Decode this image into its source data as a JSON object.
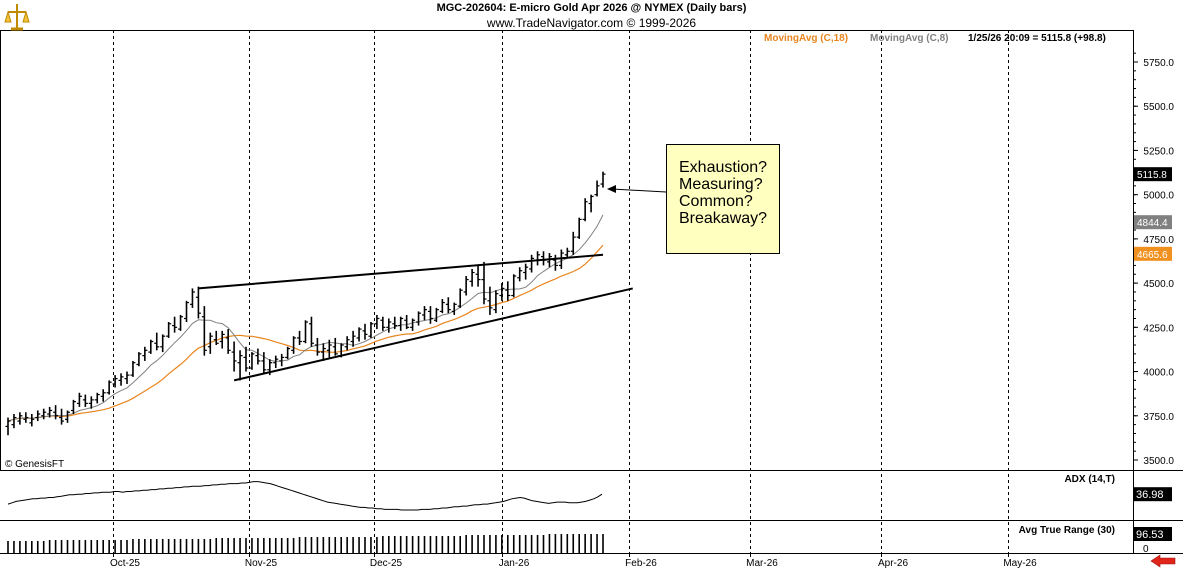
{
  "header": {
    "title": "MGC-202604:  E-micro Gold Apr 2026 @ NYMEX  (Daily bars)",
    "subtitle": "www.TradeNavigator.com © 1999-2026"
  },
  "legend": {
    "ma18": "MovingAvg (C,18)",
    "ma8": "MovingAvg (C,8)",
    "quote": "1/25/26 20:09 = 5115.8 (+98.8)"
  },
  "copyright": "© GenesisFT",
  "annotation": {
    "lines": [
      "Exhaustion?",
      "Measuring?",
      "Common?",
      "Breakaway?"
    ]
  },
  "colors": {
    "ma18": "#e8851e",
    "ma8": "#808080",
    "bars": "#000000",
    "annotation_bg": "#ffffc0",
    "last_price_bg": "#000000",
    "ma8_label_bg": "#808080",
    "ma18_label_bg": "#f0901e",
    "nav_arrow": "#e0261a"
  },
  "chart_data": {
    "type": "ohlc",
    "title": "MGC-202604:  E-micro Gold Apr 2026 @ NYMEX  (Daily bars)",
    "price_axis": {
      "range": [
        3450,
        5850
      ],
      "ticks": [
        "5750.0",
        "5500.0",
        "5250.0",
        "5000.0",
        "4750.0",
        "4500.0",
        "4250.0",
        "4000.0",
        "3750.0",
        "3500.0"
      ],
      "tick_values": [
        5750,
        5500,
        5250,
        5000,
        4750,
        4500,
        4250,
        4000,
        3750,
        3500
      ]
    },
    "price_labels": [
      {
        "name": "last",
        "text": "5115.8",
        "value": 5115.8
      },
      {
        "name": "ma8",
        "text": "4844.4",
        "value": 4844.4
      },
      {
        "name": "ma18",
        "text": "4665.6",
        "value": 4665.6
      }
    ],
    "x_axis": {
      "months": [
        "Oct-25",
        "Nov-25",
        "Dec-25",
        "Jan-26",
        "Feb-26",
        "Mar-26",
        "Apr-26",
        "May-26"
      ]
    },
    "bars": [
      [
        3690,
        3740,
        3640,
        3720
      ],
      [
        3700,
        3760,
        3680,
        3740
      ],
      [
        3720,
        3770,
        3700,
        3750
      ],
      [
        3730,
        3770,
        3710,
        3740
      ],
      [
        3710,
        3760,
        3690,
        3730
      ],
      [
        3740,
        3780,
        3720,
        3760
      ],
      [
        3750,
        3790,
        3730,
        3770
      ],
      [
        3760,
        3800,
        3740,
        3780
      ],
      [
        3770,
        3810,
        3730,
        3750
      ],
      [
        3740,
        3790,
        3700,
        3720
      ],
      [
        3730,
        3780,
        3710,
        3770
      ],
      [
        3780,
        3840,
        3760,
        3830
      ],
      [
        3820,
        3880,
        3800,
        3860
      ],
      [
        3840,
        3870,
        3800,
        3820
      ],
      [
        3820,
        3860,
        3790,
        3840
      ],
      [
        3840,
        3880,
        3820,
        3870
      ],
      [
        3860,
        3900,
        3830,
        3880
      ],
      [
        3880,
        3950,
        3870,
        3940
      ],
      [
        3930,
        3980,
        3910,
        3960
      ],
      [
        3950,
        3990,
        3920,
        3970
      ],
      [
        3960,
        4000,
        3930,
        3980
      ],
      [
        3980,
        4060,
        3970,
        4050
      ],
      [
        4040,
        4110,
        4030,
        4100
      ],
      [
        4090,
        4140,
        4060,
        4120
      ],
      [
        4110,
        4180,
        4100,
        4170
      ],
      [
        4160,
        4220,
        4120,
        4140
      ],
      [
        4140,
        4210,
        4110,
        4200
      ],
      [
        4200,
        4280,
        4190,
        4270
      ],
      [
        4260,
        4310,
        4220,
        4250
      ],
      [
        4240,
        4320,
        4230,
        4310
      ],
      [
        4300,
        4400,
        4280,
        4390
      ],
      [
        4380,
        4470,
        4360,
        4450
      ],
      [
        4420,
        4480,
        4300,
        4330
      ],
      [
        4310,
        4370,
        4090,
        4120
      ],
      [
        4140,
        4220,
        4100,
        4200
      ],
      [
        4180,
        4230,
        4150,
        4160
      ],
      [
        4170,
        4230,
        4130,
        4210
      ],
      [
        4190,
        4240,
        4100,
        4120
      ],
      [
        4110,
        4170,
        4000,
        4060
      ],
      [
        4050,
        4120,
        3950,
        4090
      ],
      [
        4080,
        4140,
        4000,
        4020
      ],
      [
        4020,
        4110,
        4010,
        4100
      ],
      [
        4090,
        4130,
        4040,
        4060
      ],
      [
        4060,
        4110,
        3990,
        4010
      ],
      [
        4010,
        4070,
        3980,
        4050
      ],
      [
        4050,
        4090,
        4020,
        4070
      ],
      [
        4060,
        4100,
        4030,
        4080
      ],
      [
        4080,
        4140,
        4070,
        4130
      ],
      [
        4120,
        4200,
        4100,
        4190
      ],
      [
        4190,
        4230,
        4150,
        4170
      ],
      [
        4170,
        4290,
        4160,
        4280
      ],
      [
        4270,
        4310,
        4140,
        4160
      ],
      [
        4150,
        4190,
        4090,
        4110
      ],
      [
        4110,
        4160,
        4060,
        4130
      ],
      [
        4120,
        4180,
        4080,
        4150
      ],
      [
        4140,
        4190,
        4090,
        4100
      ],
      [
        4090,
        4160,
        4080,
        4150
      ],
      [
        4140,
        4200,
        4120,
        4180
      ],
      [
        4170,
        4230,
        4140,
        4200
      ],
      [
        4190,
        4250,
        4170,
        4240
      ],
      [
        4230,
        4270,
        4180,
        4210
      ],
      [
        4200,
        4280,
        4190,
        4270
      ],
      [
        4270,
        4320,
        4240,
        4300
      ],
      [
        4290,
        4310,
        4230,
        4250
      ],
      [
        4250,
        4300,
        4220,
        4280
      ],
      [
        4270,
        4310,
        4240,
        4260
      ],
      [
        4260,
        4310,
        4230,
        4300
      ],
      [
        4290,
        4320,
        4240,
        4250
      ],
      [
        4250,
        4300,
        4230,
        4290
      ],
      [
        4280,
        4340,
        4260,
        4330
      ],
      [
        4320,
        4370,
        4290,
        4350
      ],
      [
        4340,
        4370,
        4270,
        4300
      ],
      [
        4290,
        4360,
        4280,
        4350
      ],
      [
        4340,
        4410,
        4330,
        4390
      ],
      [
        4380,
        4420,
        4330,
        4350
      ],
      [
        4340,
        4390,
        4320,
        4380
      ],
      [
        4370,
        4470,
        4360,
        4460
      ],
      [
        4450,
        4540,
        4430,
        4520
      ],
      [
        4510,
        4580,
        4480,
        4560
      ],
      [
        4550,
        4600,
        4480,
        4520
      ],
      [
        4520,
        4620,
        4380,
        4410
      ],
      [
        4400,
        4480,
        4320,
        4360
      ],
      [
        4350,
        4460,
        4330,
        4440
      ],
      [
        4430,
        4500,
        4400,
        4470
      ],
      [
        4460,
        4510,
        4400,
        4430
      ],
      [
        4430,
        4550,
        4420,
        4540
      ],
      [
        4530,
        4590,
        4510,
        4570
      ],
      [
        4560,
        4610,
        4520,
        4590
      ],
      [
        4580,
        4660,
        4560,
        4640
      ],
      [
        4630,
        4680,
        4600,
        4660
      ],
      [
        4650,
        4680,
        4600,
        4630
      ],
      [
        4620,
        4670,
        4590,
        4650
      ],
      [
        4630,
        4660,
        4570,
        4600
      ],
      [
        4600,
        4690,
        4580,
        4670
      ],
      [
        4660,
        4700,
        4640,
        4680
      ],
      [
        4680,
        4790,
        4660,
        4760
      ],
      [
        4760,
        4870,
        4750,
        4860
      ],
      [
        4860,
        4980,
        4850,
        4960
      ],
      [
        4950,
        5000,
        4900,
        4990
      ],
      [
        5000,
        5080,
        4990,
        5050
      ],
      [
        5060,
        5130,
        5040,
        5116
      ]
    ],
    "moving_averages": [
      {
        "name": "MovingAvg (C,8)",
        "period": 8,
        "value_last": 4844.4
      },
      {
        "name": "MovingAvg (C,18)",
        "period": 18,
        "value_last": 4665.6
      }
    ],
    "adx": {
      "label": "ADX (14,T)",
      "last": 36.98,
      "values": [
        22,
        24,
        26,
        27,
        28,
        29,
        30,
        30,
        31,
        31,
        32,
        32,
        33,
        34,
        35,
        36,
        36,
        37,
        37,
        38,
        38,
        39,
        39,
        40,
        40,
        40,
        41,
        41,
        40,
        41,
        41,
        42,
        42,
        43,
        43,
        44,
        44,
        45,
        45,
        46,
        46,
        47,
        47,
        48,
        48,
        49,
        49,
        49,
        50,
        50,
        51,
        51,
        52,
        52,
        53,
        53,
        53,
        54,
        54,
        55,
        56,
        56,
        55,
        54,
        53,
        51,
        49,
        47,
        45,
        43,
        41,
        39,
        37,
        35,
        33,
        31,
        29,
        27,
        25,
        24,
        23,
        22,
        21,
        20,
        19,
        18,
        17,
        17,
        16,
        16,
        15,
        15,
        14,
        14,
        14,
        14,
        13,
        13,
        13,
        13,
        13,
        14,
        14,
        14,
        15,
        15,
        16,
        16,
        17,
        18,
        18,
        19,
        19,
        20,
        21,
        21,
        22,
        22,
        23,
        24,
        25,
        26,
        28,
        30,
        31,
        32,
        31,
        29,
        27,
        26,
        25,
        24,
        23,
        24,
        25,
        25,
        25,
        24,
        24,
        24,
        25,
        26,
        28,
        30,
        33,
        36.98
      ]
    },
    "atr": {
      "label": "Avg True Range (30)",
      "last": 96.53
    },
    "annotations": {
      "trend_lines": [
        {
          "name": "upper-wedge-line",
          "from": {
            "bar": 32,
            "price": 4470
          },
          "to": {
            "bar": 100,
            "price": 4660
          }
        },
        {
          "name": "lower-wedge-line",
          "from": {
            "bar": 38,
            "price": 3950
          },
          "to": {
            "bar": 105,
            "price": 4470
          }
        }
      ]
    }
  }
}
